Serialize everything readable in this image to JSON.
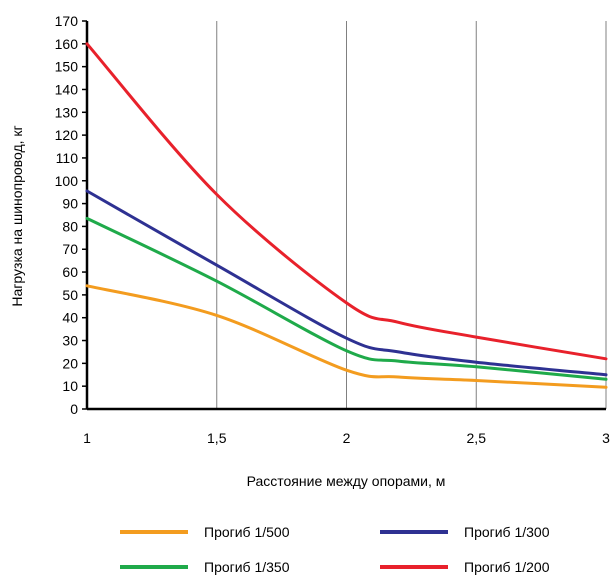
{
  "chart_data": {
    "type": "line",
    "xlabel": "Расстояние между опорами, м",
    "ylabel": "Нагрузка на шинопровод,  кг",
    "xlim": [
      1,
      3
    ],
    "ylim": [
      0,
      170
    ],
    "x_ticks": [
      "1",
      "1,5",
      "2",
      "2,5",
      "3"
    ],
    "x_tick_values": [
      1,
      1.5,
      2,
      2.5,
      3
    ],
    "y_ticks": [
      "0",
      "10",
      "20",
      "30",
      "40",
      "50",
      "60",
      "70",
      "80",
      "90",
      "100",
      "110",
      "120",
      "130",
      "140",
      "150",
      "160",
      "170"
    ],
    "grid": "vertical",
    "legend_position": "bottom",
    "series": [
      {
        "name": "Прогиб 1/500",
        "color": "#f39c1f",
        "points": [
          [
            1,
            54
          ],
          [
            1.5,
            41
          ],
          [
            2,
            17
          ],
          [
            2.2,
            14
          ],
          [
            2.5,
            12.5
          ],
          [
            3,
            9.5
          ]
        ]
      },
      {
        "name": "Прогиб 1/300",
        "color": "#2e3192",
        "points": [
          [
            1,
            95.5
          ],
          [
            1.5,
            63
          ],
          [
            2,
            31
          ],
          [
            2.2,
            25
          ],
          [
            2.5,
            20.5
          ],
          [
            3,
            15
          ]
        ]
      },
      {
        "name": "Прогиб 1/350",
        "color": "#1faa4a",
        "points": [
          [
            1,
            83.5
          ],
          [
            1.5,
            56
          ],
          [
            2,
            25.5
          ],
          [
            2.2,
            21
          ],
          [
            2.5,
            18.5
          ],
          [
            3,
            13
          ]
        ]
      },
      {
        "name": "Прогиб 1/200",
        "color": "#e8212b",
        "points": [
          [
            1,
            160
          ],
          [
            1.5,
            94
          ],
          [
            2,
            46.5
          ],
          [
            2.2,
            38
          ],
          [
            2.5,
            31.5
          ],
          [
            3,
            22
          ]
        ]
      }
    ]
  }
}
